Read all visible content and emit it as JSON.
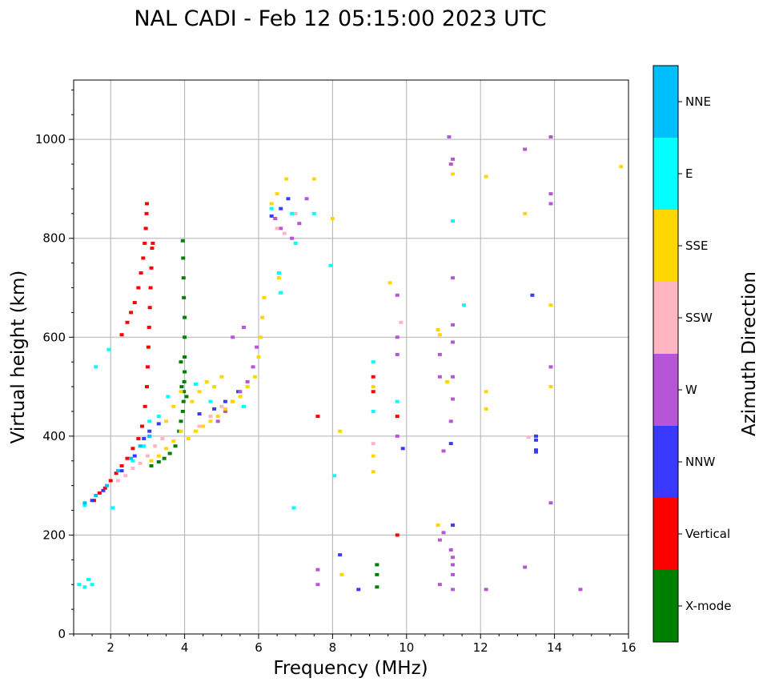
{
  "chart_data": {
    "type": "scatter",
    "title": "NAL CADI - Feb 12 05:15:00 2023 UTC",
    "xlabel": "Frequency (MHz)",
    "ylabel": "Virtual height (km)",
    "xlim": [
      1,
      16
    ],
    "ylim": [
      0,
      1120
    ],
    "xticks": [
      2,
      4,
      6,
      8,
      10,
      12,
      14,
      16
    ],
    "yticks": [
      0,
      200,
      400,
      600,
      800,
      1000
    ],
    "grid": true,
    "colorbar": {
      "label": "Azimuth Direction",
      "categories": [
        {
          "name": "X-mode",
          "color": "#008000"
        },
        {
          "name": "Vertical",
          "color": "#ff0000"
        },
        {
          "name": "NNW",
          "color": "#3a3aff"
        },
        {
          "name": "W",
          "color": "#b656d6"
        },
        {
          "name": "SSW",
          "color": "#ffb6c1"
        },
        {
          "name": "SSE",
          "color": "#ffd700"
        },
        {
          "name": "E",
          "color": "#00ffff"
        },
        {
          "name": "NNE",
          "color": "#00bfff"
        }
      ]
    },
    "series": [
      {
        "name": "X-mode",
        "points": [
          [
            3.1,
            340
          ],
          [
            3.3,
            348
          ],
          [
            3.45,
            355
          ],
          [
            3.6,
            365
          ],
          [
            3.75,
            380
          ],
          [
            3.85,
            410
          ],
          [
            3.9,
            430
          ],
          [
            3.95,
            450
          ],
          [
            3.97,
            470
          ],
          [
            3.98,
            490
          ],
          [
            3.99,
            510
          ],
          [
            4.0,
            530
          ],
          [
            4.0,
            560
          ],
          [
            4.0,
            600
          ],
          [
            4.0,
            640
          ],
          [
            3.98,
            680
          ],
          [
            3.97,
            720
          ],
          [
            3.96,
            760
          ],
          [
            3.95,
            795
          ],
          [
            3.92,
            500
          ],
          [
            3.9,
            550
          ],
          [
            4.05,
            480
          ],
          [
            9.2,
            140
          ],
          [
            9.2,
            120
          ],
          [
            9.2,
            95
          ]
        ]
      },
      {
        "name": "Vertical",
        "points": [
          [
            1.55,
            270
          ],
          [
            1.7,
            285
          ],
          [
            1.85,
            295
          ],
          [
            2.0,
            310
          ],
          [
            2.15,
            325
          ],
          [
            2.3,
            340
          ],
          [
            2.45,
            355
          ],
          [
            2.6,
            375
          ],
          [
            2.75,
            395
          ],
          [
            2.85,
            420
          ],
          [
            2.93,
            460
          ],
          [
            2.98,
            500
          ],
          [
            3.0,
            540
          ],
          [
            3.02,
            580
          ],
          [
            3.04,
            620
          ],
          [
            3.06,
            660
          ],
          [
            3.08,
            700
          ],
          [
            3.1,
            740
          ],
          [
            3.12,
            780
          ],
          [
            3.14,
            790
          ],
          [
            2.3,
            605
          ],
          [
            2.45,
            630
          ],
          [
            2.55,
            650
          ],
          [
            2.65,
            670
          ],
          [
            2.75,
            700
          ],
          [
            2.82,
            730
          ],
          [
            2.88,
            760
          ],
          [
            2.92,
            790
          ],
          [
            2.95,
            820
          ],
          [
            2.97,
            850
          ],
          [
            2.98,
            870
          ],
          [
            9.1,
            520
          ],
          [
            9.1,
            490
          ],
          [
            9.75,
            440
          ],
          [
            9.75,
            200
          ],
          [
            7.6,
            440
          ]
        ]
      },
      {
        "name": "NNW",
        "points": [
          [
            1.5,
            270
          ],
          [
            1.8,
            290
          ],
          [
            2.3,
            330
          ],
          [
            2.65,
            360
          ],
          [
            2.9,
            395
          ],
          [
            3.05,
            410
          ],
          [
            3.3,
            425
          ],
          [
            4.4,
            445
          ],
          [
            4.8,
            455
          ],
          [
            5.1,
            470
          ],
          [
            5.45,
            490
          ],
          [
            6.35,
            845
          ],
          [
            6.6,
            860
          ],
          [
            6.8,
            880
          ],
          [
            8.2,
            160
          ],
          [
            8.7,
            90
          ],
          [
            9.9,
            375
          ],
          [
            11.2,
            385
          ],
          [
            11.25,
            220
          ],
          [
            13.4,
            685
          ],
          [
            13.5,
            400
          ],
          [
            13.5,
            392
          ],
          [
            13.5,
            372
          ],
          [
            13.5,
            368
          ]
        ]
      },
      {
        "name": "W",
        "points": [
          [
            4.9,
            430
          ],
          [
            5.1,
            450
          ],
          [
            5.3,
            470
          ],
          [
            5.5,
            490
          ],
          [
            5.7,
            510
          ],
          [
            5.85,
            540
          ],
          [
            5.95,
            580
          ],
          [
            5.3,
            600
          ],
          [
            5.6,
            620
          ],
          [
            6.45,
            840
          ],
          [
            6.6,
            820
          ],
          [
            6.9,
            800
          ],
          [
            7.1,
            830
          ],
          [
            7.3,
            880
          ],
          [
            7.6,
            100
          ],
          [
            7.6,
            130
          ],
          [
            9.75,
            685
          ],
          [
            9.75,
            600
          ],
          [
            9.75,
            565
          ],
          [
            9.75,
            400
          ],
          [
            10.9,
            565
          ],
          [
            10.9,
            520
          ],
          [
            11.0,
            370
          ],
          [
            11.2,
            430
          ],
          [
            11.25,
            475
          ],
          [
            11.25,
            520
          ],
          [
            11.25,
            590
          ],
          [
            11.25,
            625
          ],
          [
            11.25,
            720
          ],
          [
            11.25,
            960
          ],
          [
            11.15,
            1005
          ],
          [
            11.2,
            950
          ],
          [
            10.9,
            190
          ],
          [
            11.0,
            205
          ],
          [
            11.2,
            170
          ],
          [
            11.25,
            155
          ],
          [
            11.25,
            140
          ],
          [
            11.25,
            120
          ],
          [
            11.25,
            90
          ],
          [
            13.2,
            980
          ],
          [
            13.9,
            1005
          ],
          [
            13.9,
            890
          ],
          [
            13.9,
            870
          ],
          [
            13.9,
            540
          ],
          [
            13.9,
            265
          ],
          [
            13.2,
            135
          ],
          [
            14.7,
            90
          ],
          [
            12.15,
            90
          ],
          [
            10.9,
            100
          ]
        ]
      },
      {
        "name": "SSW",
        "points": [
          [
            2.2,
            310
          ],
          [
            2.4,
            320
          ],
          [
            2.6,
            335
          ],
          [
            2.8,
            345
          ],
          [
            3.0,
            360
          ],
          [
            3.2,
            380
          ],
          [
            3.4,
            395
          ],
          [
            4.4,
            420
          ],
          [
            4.7,
            440
          ],
          [
            5.0,
            460
          ],
          [
            6.5,
            820
          ],
          [
            6.7,
            810
          ],
          [
            7.0,
            850
          ],
          [
            9.1,
            385
          ],
          [
            9.85,
            630
          ],
          [
            13.3,
            398
          ]
        ]
      },
      {
        "name": "SSE",
        "points": [
          [
            3.1,
            350
          ],
          [
            3.3,
            360
          ],
          [
            3.5,
            375
          ],
          [
            3.7,
            390
          ],
          [
            3.9,
            410
          ],
          [
            4.1,
            395
          ],
          [
            4.3,
            410
          ],
          [
            4.5,
            420
          ],
          [
            4.7,
            430
          ],
          [
            4.9,
            440
          ],
          [
            5.1,
            455
          ],
          [
            5.3,
            470
          ],
          [
            5.5,
            480
          ],
          [
            5.7,
            500
          ],
          [
            3.5,
            430
          ],
          [
            3.7,
            460
          ],
          [
            3.9,
            490
          ],
          [
            4.2,
            470
          ],
          [
            4.4,
            490
          ],
          [
            4.6,
            510
          ],
          [
            4.8,
            500
          ],
          [
            5.0,
            520
          ],
          [
            5.9,
            520
          ],
          [
            6.0,
            560
          ],
          [
            6.05,
            600
          ],
          [
            6.1,
            640
          ],
          [
            6.15,
            680
          ],
          [
            6.55,
            720
          ],
          [
            6.6,
            690
          ],
          [
            6.35,
            870
          ],
          [
            6.5,
            890
          ],
          [
            6.75,
            920
          ],
          [
            7.5,
            920
          ],
          [
            8.0,
            840
          ],
          [
            8.2,
            410
          ],
          [
            8.25,
            120
          ],
          [
            9.1,
            550
          ],
          [
            9.1,
            500
          ],
          [
            9.1,
            360
          ],
          [
            9.1,
            328
          ],
          [
            9.55,
            710
          ],
          [
            10.85,
            615
          ],
          [
            10.9,
            605
          ],
          [
            11.1,
            510
          ],
          [
            11.25,
            930
          ],
          [
            12.15,
            925
          ],
          [
            12.15,
            490
          ],
          [
            12.15,
            455
          ],
          [
            13.2,
            850
          ],
          [
            13.9,
            665
          ],
          [
            13.9,
            500
          ],
          [
            10.85,
            220
          ],
          [
            15.8,
            945
          ]
        ]
      },
      {
        "name": "E",
        "points": [
          [
            1.15,
            100
          ],
          [
            1.3,
            95
          ],
          [
            1.4,
            110
          ],
          [
            1.5,
            100
          ],
          [
            1.3,
            260
          ],
          [
            1.6,
            540
          ],
          [
            1.95,
            575
          ],
          [
            2.05,
            255
          ],
          [
            2.6,
            350
          ],
          [
            2.9,
            380
          ],
          [
            3.05,
            430
          ],
          [
            3.3,
            440
          ],
          [
            3.55,
            480
          ],
          [
            4.3,
            505
          ],
          [
            4.7,
            470
          ],
          [
            5.6,
            460
          ],
          [
            6.55,
            730
          ],
          [
            6.6,
            690
          ],
          [
            6.35,
            860
          ],
          [
            6.9,
            850
          ],
          [
            7.0,
            790
          ],
          [
            7.5,
            850
          ],
          [
            7.95,
            745
          ],
          [
            8.05,
            320
          ],
          [
            6.95,
            255
          ],
          [
            9.1,
            550
          ],
          [
            9.1,
            450
          ],
          [
            9.75,
            470
          ],
          [
            11.25,
            835
          ],
          [
            11.55,
            665
          ]
        ]
      },
      {
        "name": "NNE",
        "points": [
          [
            1.3,
            265
          ],
          [
            1.6,
            280
          ],
          [
            1.9,
            300
          ],
          [
            2.2,
            330
          ],
          [
            2.55,
            355
          ],
          [
            2.8,
            380
          ],
          [
            3.05,
            400
          ]
        ]
      }
    ]
  }
}
